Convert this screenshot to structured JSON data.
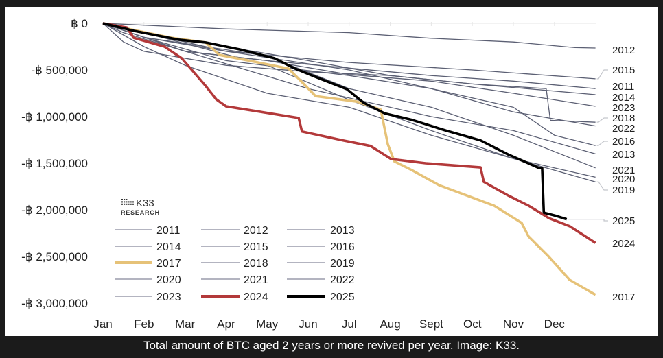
{
  "caption": {
    "text": "Total amount of BTC aged 2 years or more revived per year. Image: ",
    "link": "K33",
    "end": "."
  },
  "logo": {
    "mark": "K33",
    "sub": "RESEARCH"
  },
  "colors": {
    "other_years": "#5b5f73",
    "legend_other": "#9a9cab",
    "2017": "#e6c278",
    "2024": "#b3393a",
    "2025": "#000000",
    "leader": "#c4c6cc"
  },
  "chart_data": {
    "type": "line",
    "title": "",
    "xlabel": "",
    "ylabel": "",
    "x_tick_labels": [
      "Jan",
      "Feb",
      "Mar",
      "Apr",
      "May",
      "Jun",
      "Jul",
      "Aug",
      "Sept",
      "Oct",
      "Nov",
      "Dec"
    ],
    "y_tick_labels": [
      "฿ 0",
      "-฿ 500,000",
      "-฿ 1,000,000",
      "-฿ 1,500,000",
      "-฿ 2,000,000",
      "-฿ 2,500,000",
      "-฿ 3,000,000"
    ],
    "xlim_months": [
      0,
      12
    ],
    "ylim": [
      -3000000,
      0
    ],
    "grid": false,
    "legend_placement": "bottom-left",
    "legend": [
      "2011",
      "2012",
      "2013",
      "2014",
      "2015",
      "2016",
      "2017",
      "2018",
      "2019",
      "2020",
      "2021",
      "2022",
      "2023",
      "2024",
      "2025"
    ],
    "series": [
      {
        "name": "2011",
        "x": [
          0,
          0.5,
          2,
          4,
          6,
          8,
          10,
          12
        ],
        "y": [
          0,
          -100000,
          -300000,
          -400000,
          -480000,
          -560000,
          -620000,
          -700000
        ]
      },
      {
        "name": "2012",
        "x": [
          0,
          1,
          3,
          6,
          8,
          10,
          11.5,
          12
        ],
        "y": [
          0,
          -20000,
          -60000,
          -100000,
          -160000,
          -200000,
          -260000,
          -265000
        ]
      },
      {
        "name": "2013",
        "x": [
          0,
          2,
          5,
          8,
          10,
          12
        ],
        "y": [
          0,
          -300000,
          -700000,
          -1000000,
          -1150000,
          -1400000
        ]
      },
      {
        "name": "2014",
        "x": [
          0,
          1,
          3,
          5,
          7,
          9,
          12
        ],
        "y": [
          0,
          -100000,
          -250000,
          -400000,
          -560000,
          -650000,
          -765000
        ]
      },
      {
        "name": "2015",
        "x": [
          0,
          1,
          3,
          6,
          9,
          12
        ],
        "y": [
          0,
          -150000,
          -300000,
          -420000,
          -500000,
          -595000
        ]
      },
      {
        "name": "2016",
        "x": [
          0,
          1,
          3,
          6,
          8,
          10,
          11,
          12
        ],
        "y": [
          0,
          -100000,
          -300000,
          -500000,
          -700000,
          -900000,
          -1200000,
          -1310000
        ]
      },
      {
        "name": "2017",
        "x": [
          0,
          0.84,
          1.67,
          2.5,
          2.84,
          3.5,
          4.52,
          4.77,
          5.18,
          6.19,
          6.77,
          6.94,
          7.1,
          7.53,
          8.19,
          8.86,
          9.53,
          10.2,
          10.37,
          10.87,
          11.37,
          12
        ],
        "y": [
          0,
          -80000,
          -155000,
          -205000,
          -340000,
          -395000,
          -485000,
          -595000,
          -780000,
          -840000,
          -925000,
          -1295000,
          -1480000,
          -1575000,
          -1735000,
          -1845000,
          -1955000,
          -2140000,
          -2285000,
          -2505000,
          -2750000,
          -2910000
        ]
      },
      {
        "name": "2018",
        "x": [
          0,
          0.5,
          1,
          3,
          5,
          7,
          9,
          10.8,
          10.9,
          12
        ],
        "y": [
          0,
          -200000,
          -300000,
          -450000,
          -520000,
          -560000,
          -650000,
          -700000,
          -1040000,
          -1060000
        ]
      },
      {
        "name": "2019",
        "x": [
          0,
          1,
          4,
          6,
          8,
          10,
          12
        ],
        "y": [
          0,
          -100000,
          -450000,
          -820000,
          -1150000,
          -1450000,
          -1700000
        ]
      },
      {
        "name": "2020",
        "x": [
          0,
          1,
          2,
          3,
          4,
          6,
          8,
          10,
          12
        ],
        "y": [
          0,
          -250000,
          -450000,
          -600000,
          -750000,
          -900000,
          -1200000,
          -1450000,
          -1650000
        ]
      },
      {
        "name": "2021",
        "x": [
          0,
          1,
          4,
          6,
          8,
          10,
          12
        ],
        "y": [
          0,
          -150000,
          -350000,
          -700000,
          -900000,
          -1200000,
          -1550000
        ]
      },
      {
        "name": "2022",
        "x": [
          0,
          1,
          3,
          6,
          8,
          10,
          12
        ],
        "y": [
          0,
          -150000,
          -400000,
          -560000,
          -700000,
          -950000,
          -1100000
        ]
      },
      {
        "name": "2023",
        "x": [
          0,
          1,
          2,
          4,
          6,
          8,
          10,
          12
        ],
        "y": [
          0,
          -150000,
          -300000,
          -400000,
          -550000,
          -620000,
          -750000,
          -890000
        ]
      },
      {
        "name": "2024",
        "x": [
          0,
          0.58,
          0.75,
          1.5,
          1.92,
          2.5,
          2.76,
          3.0,
          3.5,
          4.77,
          4.85,
          5.85,
          6.52,
          7.02,
          7.86,
          9.2,
          9.28,
          9.87,
          10.37,
          10.87,
          11.37,
          12
        ],
        "y": [
          0,
          -45000,
          -155000,
          -250000,
          -375000,
          -670000,
          -815000,
          -890000,
          -925000,
          -1015000,
          -1160000,
          -1255000,
          -1315000,
          -1455000,
          -1500000,
          -1545000,
          -1700000,
          -1845000,
          -1955000,
          -2090000,
          -2175000,
          -2355000
        ]
      },
      {
        "name": "2025",
        "x": [
          0,
          0.75,
          1.84,
          2.5,
          3.34,
          4.18,
          4.68,
          5.18,
          5.94,
          6.35,
          6.86,
          7.53,
          8.36,
          9.2,
          9.87,
          10.62,
          10.7,
          10.74,
          11.04,
          11.3
        ],
        "y": [
          0,
          -80000,
          -175000,
          -205000,
          -280000,
          -375000,
          -485000,
          -575000,
          -705000,
          -850000,
          -965000,
          -1035000,
          -1150000,
          -1255000,
          -1405000,
          -1550000,
          -1550000,
          -2030000,
          -2065000,
          -2100000
        ]
      }
    ]
  }
}
